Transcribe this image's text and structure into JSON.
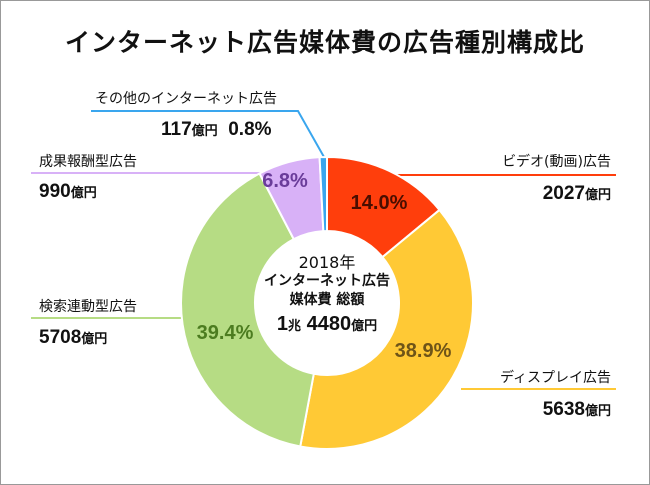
{
  "chart_data": {
    "type": "pie",
    "title": "インターネット広告媒体費の広告種別構成比",
    "center_label": {
      "line1": "2018年",
      "line2": "インターネット広告",
      "line3": "媒体費 総額",
      "total_a": "1",
      "total_a_unit": "兆",
      "total_b": "4480",
      "total_b_unit": "億円"
    },
    "unit": "億円",
    "slices": [
      {
        "name": "ビデオ(動画)広告",
        "value": 2027,
        "percent": "14.0%",
        "color": "#ff3e0c",
        "text_color": "#4a0e00",
        "line_color": "#ff3e0c"
      },
      {
        "name": "ディスプレイ広告",
        "value": 5638,
        "percent": "38.9%",
        "color": "#ffc935",
        "text_color": "#6e5418",
        "line_color": "#ffc935"
      },
      {
        "name": "検索連動型広告",
        "value": 5708,
        "percent": "39.4%",
        "color": "#b6dc84",
        "text_color": "#4c7c20",
        "line_color": "#b6dc84"
      },
      {
        "name": "成果報酬型広告",
        "value": 990,
        "percent": "6.8%",
        "color": "#d8b1f7",
        "text_color": "#6a3c9a",
        "line_color": "#d8b1f7"
      },
      {
        "name": "その他のインターネット広告",
        "value": 117,
        "percent": "0.8%",
        "color": "#3aa6ee",
        "text_color": "#111111",
        "line_color": "#3aa6ee"
      }
    ]
  }
}
